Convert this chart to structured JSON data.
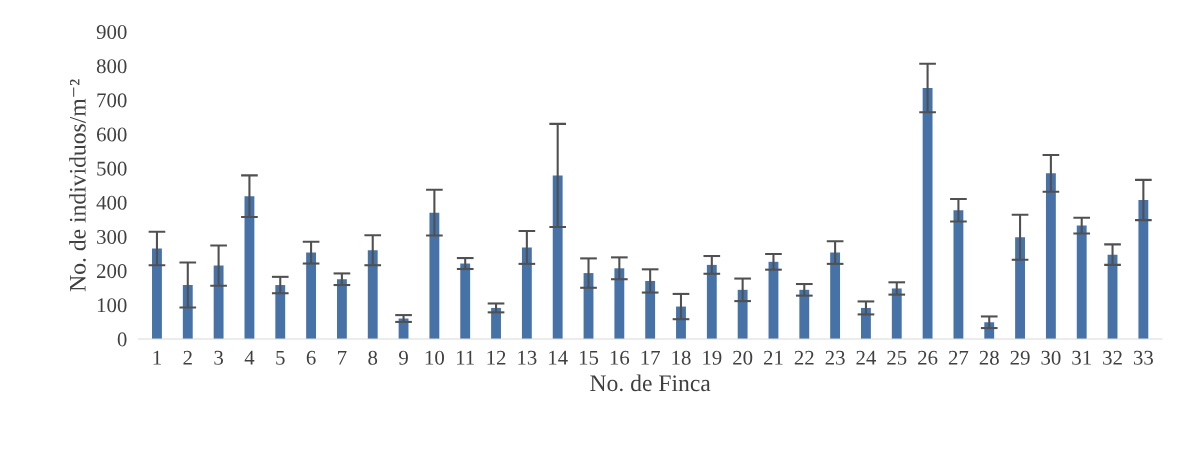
{
  "chart_data": {
    "type": "bar",
    "xlabel": "No. de Finca",
    "ylabel": "No. de individuos/m⁻²",
    "categories": [
      "1",
      "2",
      "3",
      "4",
      "5",
      "6",
      "7",
      "8",
      "9",
      "10",
      "11",
      "12",
      "13",
      "14",
      "15",
      "16",
      "17",
      "18",
      "19",
      "20",
      "21",
      "22",
      "23",
      "24",
      "25",
      "26",
      "27",
      "28",
      "29",
      "30",
      "31",
      "32",
      "33"
    ],
    "values": [
      265,
      158,
      215,
      418,
      158,
      253,
      175,
      260,
      60,
      370,
      221,
      91,
      268,
      479,
      193,
      207,
      170,
      95,
      217,
      144,
      226,
      144,
      253,
      91,
      148,
      735,
      377,
      49,
      298,
      485,
      332,
      247,
      407
    ],
    "errors": [
      49,
      66,
      59,
      61,
      24,
      32,
      17,
      44,
      10,
      67,
      16,
      13,
      48,
      151,
      43,
      32,
      34,
      37,
      26,
      33,
      23,
      17,
      33,
      19,
      18,
      71,
      33,
      17,
      66,
      54,
      23,
      30,
      59
    ],
    "color": "#4672a8",
    "ylim": [
      0,
      900
    ],
    "yticks": [
      0,
      100,
      200,
      300,
      400,
      500,
      600,
      700,
      800,
      900
    ],
    "grid": false,
    "legend": false
  }
}
